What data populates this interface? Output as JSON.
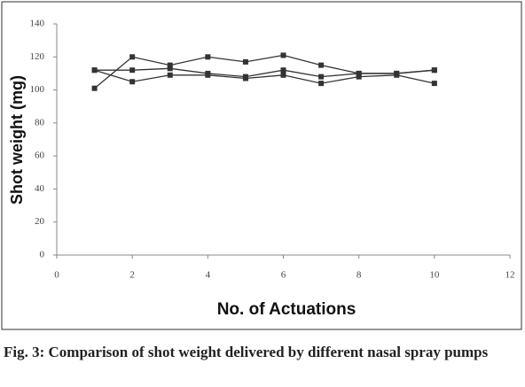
{
  "chart_data": {
    "type": "line",
    "x_label": "No. of Actuations",
    "y_label": "Shot weight (mg)",
    "caption": "Fig. 3: Comparison of shot weight delivered by different nasal spray pumps",
    "x": [
      1,
      2,
      3,
      4,
      5,
      6,
      7,
      8,
      9,
      10
    ],
    "series": [
      {
        "color": "#333333",
        "values": [
          101,
          120,
          115,
          120,
          117,
          121,
          115,
          110,
          110,
          112
        ]
      },
      {
        "color": "#333333",
        "values": [
          112,
          112,
          113,
          110,
          108,
          112,
          108,
          110,
          110,
          112
        ]
      },
      {
        "color": "#333333",
        "values": [
          112,
          105,
          109,
          109,
          107,
          109,
          104,
          108,
          109,
          104
        ]
      }
    ],
    "xlim": [
      0,
      12
    ],
    "xticks": [
      0,
      2,
      4,
      6,
      8,
      10,
      12
    ],
    "ylim": [
      0,
      140
    ],
    "yticks": [
      0,
      20,
      40,
      60,
      80,
      100,
      120,
      140
    ],
    "grid": false
  }
}
